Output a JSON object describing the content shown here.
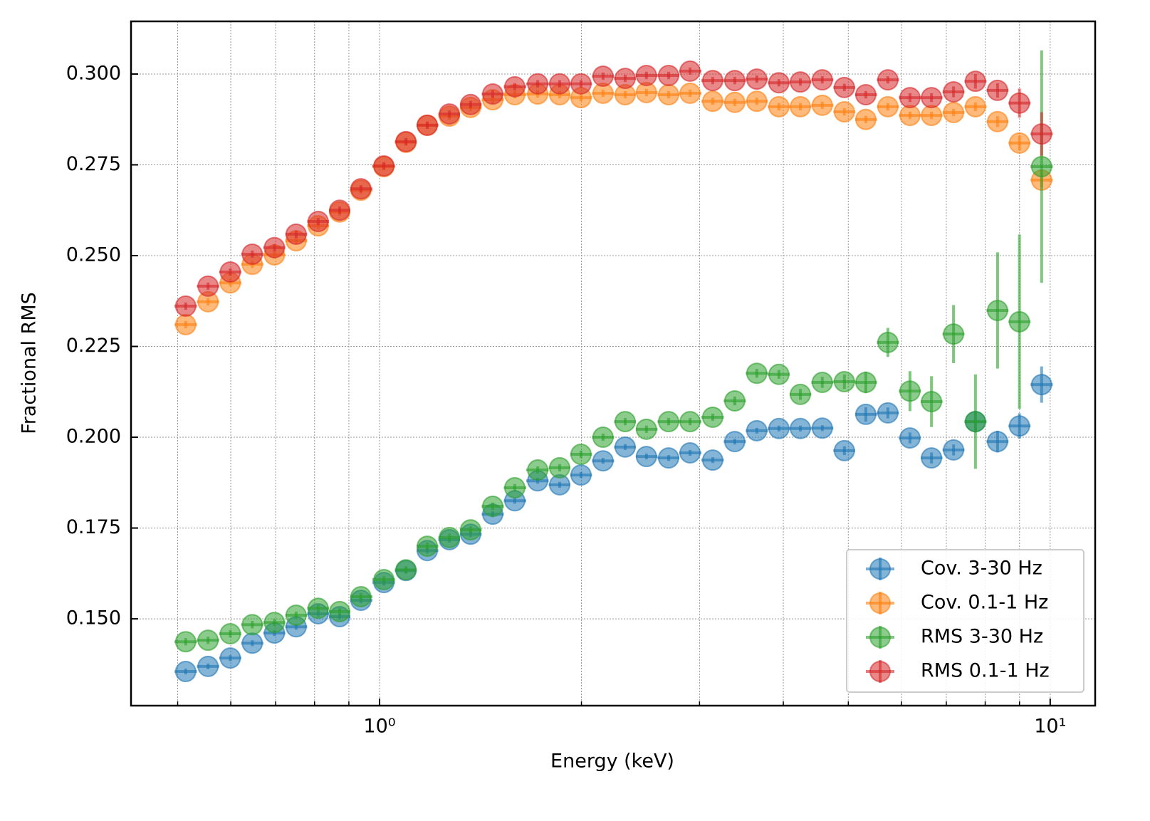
{
  "chart_data": {
    "type": "errorbar",
    "xlabel": "Energy (keV)",
    "ylabel": "Fractional RMS",
    "x": [
      0.514,
      0.555,
      0.599,
      0.646,
      0.697,
      0.751,
      0.81,
      0.872,
      0.938,
      1.015,
      1.095,
      1.178,
      1.271,
      1.367,
      1.475,
      1.591,
      1.721,
      1.856,
      1.997,
      2.154,
      2.324,
      2.5,
      2.698,
      2.904,
      3.139,
      3.386,
      3.652,
      3.94,
      4.241,
      4.573,
      4.933,
      5.31,
      5.728,
      6.179,
      6.653,
      7.176,
      7.736,
      8.347,
      8.998,
      9.71
    ],
    "series": [
      {
        "name": "Cov. 3-30 Hz",
        "color": "#1f77b4",
        "values": [
          0.1355,
          0.1369,
          0.1392,
          0.1433,
          0.1461,
          0.1478,
          0.1514,
          0.1506,
          0.1551,
          0.16,
          0.1633,
          0.1688,
          0.1718,
          0.1733,
          0.1788,
          0.1825,
          0.188,
          0.1869,
          0.1896,
          0.1935,
          0.1973,
          0.1947,
          0.1943,
          0.1957,
          0.1937,
          0.1988,
          0.2018,
          0.2024,
          0.2024,
          0.2025,
          0.1963,
          0.2063,
          0.2067,
          0.1998,
          0.1943,
          0.1965,
          0.2043,
          0.1988,
          0.2031,
          0.2145
        ],
        "yerr": [
          0.0008,
          0.0008,
          0.0008,
          0.0008,
          0.0008,
          0.0008,
          0.0008,
          0.0008,
          0.0008,
          0.0008,
          0.0008,
          0.0008,
          0.0008,
          0.0008,
          0.0008,
          0.0008,
          0.0008,
          0.0008,
          0.0008,
          0.0008,
          0.0008,
          0.0008,
          0.0008,
          0.0008,
          0.0008,
          0.0008,
          0.0008,
          0.0008,
          0.0008,
          0.0008,
          0.0012,
          0.002,
          0.0015,
          0.0015,
          0.0015,
          0.0015,
          0.003,
          0.003,
          0.0035,
          0.005
        ]
      },
      {
        "name": "Cov. 0.1-1 Hz",
        "color": "#ff7f0e",
        "values": [
          0.231,
          0.2373,
          0.2425,
          0.2476,
          0.2502,
          0.2541,
          0.2582,
          0.262,
          0.268,
          0.2745,
          0.2812,
          0.2859,
          0.2884,
          0.2908,
          0.2929,
          0.2943,
          0.2945,
          0.2943,
          0.2935,
          0.2947,
          0.2943,
          0.2949,
          0.2943,
          0.2947,
          0.2925,
          0.2922,
          0.2925,
          0.291,
          0.291,
          0.2914,
          0.2896,
          0.2875,
          0.291,
          0.2886,
          0.2886,
          0.2894,
          0.291,
          0.2869,
          0.281,
          0.2708
        ],
        "yerr": [
          0.001,
          0.001,
          0.001,
          0.001,
          0.001,
          0.001,
          0.001,
          0.001,
          0.001,
          0.001,
          0.001,
          0.001,
          0.001,
          0.001,
          0.001,
          0.001,
          0.001,
          0.001,
          0.001,
          0.001,
          0.001,
          0.001,
          0.001,
          0.001,
          0.001,
          0.001,
          0.001,
          0.001,
          0.001,
          0.001,
          0.001,
          0.001,
          0.001,
          0.001,
          0.001,
          0.001,
          0.0012,
          0.0015,
          0.002,
          0.002
        ]
      },
      {
        "name": "RMS 3-30 Hz",
        "color": "#2ca02c",
        "values": [
          0.1437,
          0.1441,
          0.1459,
          0.1484,
          0.149,
          0.151,
          0.1529,
          0.152,
          0.1561,
          0.1608,
          0.1635,
          0.17,
          0.1724,
          0.1745,
          0.181,
          0.1861,
          0.191,
          0.1916,
          0.1953,
          0.2,
          0.2043,
          0.2022,
          0.2043,
          0.2043,
          0.2055,
          0.21,
          0.2176,
          0.2173,
          0.2118,
          0.2151,
          0.2153,
          0.2151,
          0.2261,
          0.2127,
          0.2098,
          0.2284,
          0.2043,
          0.2349,
          0.2318,
          0.2745
        ],
        "yerr": [
          0.001,
          0.001,
          0.001,
          0.001,
          0.001,
          0.001,
          0.001,
          0.001,
          0.001,
          0.001,
          0.001,
          0.001,
          0.001,
          0.001,
          0.001,
          0.001,
          0.001,
          0.001,
          0.001,
          0.001,
          0.001,
          0.001,
          0.001,
          0.001,
          0.001,
          0.0012,
          0.0012,
          0.0012,
          0.0015,
          0.0015,
          0.002,
          0.003,
          0.004,
          0.0055,
          0.007,
          0.008,
          0.013,
          0.016,
          0.024,
          0.032
        ]
      },
      {
        "name": "RMS 0.1-1 Hz",
        "color": "#d62728",
        "values": [
          0.2361,
          0.2416,
          0.2455,
          0.2504,
          0.2522,
          0.2559,
          0.2594,
          0.2625,
          0.2684,
          0.2747,
          0.2814,
          0.2859,
          0.289,
          0.2916,
          0.2945,
          0.2965,
          0.2973,
          0.2973,
          0.2973,
          0.2994,
          0.2988,
          0.2996,
          0.2996,
          0.3008,
          0.2982,
          0.2982,
          0.2986,
          0.2976,
          0.2978,
          0.2984,
          0.2963,
          0.2943,
          0.2984,
          0.2935,
          0.2935,
          0.2951,
          0.298,
          0.2955,
          0.292,
          0.2835
        ],
        "yerr": [
          0.001,
          0.001,
          0.001,
          0.001,
          0.001,
          0.001,
          0.001,
          0.001,
          0.001,
          0.001,
          0.001,
          0.001,
          0.001,
          0.001,
          0.001,
          0.001,
          0.001,
          0.001,
          0.001,
          0.001,
          0.001,
          0.001,
          0.001,
          0.001,
          0.001,
          0.001,
          0.001,
          0.001,
          0.001,
          0.001,
          0.001,
          0.001,
          0.001,
          0.0012,
          0.0012,
          0.0015,
          0.002,
          0.002,
          0.004,
          0.006
        ]
      }
    ],
    "xscale": "log",
    "xlim": [
      0.426,
      11.67
    ],
    "xticks": [
      {
        "value": 1,
        "label": "10⁰"
      },
      {
        "value": 10,
        "label": "10¹"
      }
    ],
    "xminorticks": [
      0.5,
      0.6,
      0.7,
      0.8,
      0.9,
      2,
      3,
      4,
      5,
      6,
      7,
      8,
      9
    ],
    "ylim": [
      0.1261,
      0.3145
    ],
    "yticks": [
      {
        "value": 0.15,
        "label": "0.150"
      },
      0.175,
      {
        "value": 0.2,
        "label": "0.200"
      },
      0.225,
      {
        "value": 0.25,
        "label": "0.250"
      },
      0.275,
      {
        "value": 0.3,
        "label": "0.300"
      }
    ],
    "grid": true,
    "legend": "lower right"
  }
}
